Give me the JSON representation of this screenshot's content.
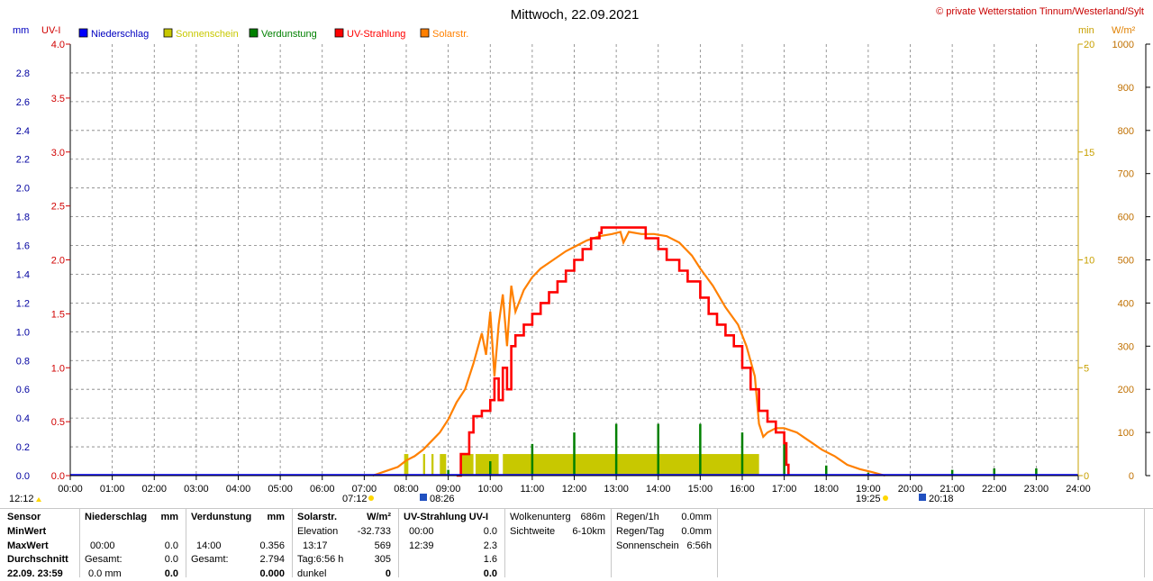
{
  "header": {
    "title": "Mittwoch, 22.09.2021",
    "copyright": "© private Wetterstation Tinnum/Westerland/Sylt"
  },
  "axes": {
    "left_unit_mm": "mm",
    "left_unit_uv": "UV-I",
    "right_unit_min": "min",
    "right_unit_wm2": "W/m²"
  },
  "legend": [
    {
      "label": "Niederschlag",
      "color": "#0000ff"
    },
    {
      "label": "Sonnenschein",
      "color": "#c8c800"
    },
    {
      "label": "Verdunstung",
      "color": "#008000"
    },
    {
      "label": "UV-Strahlung",
      "color": "#ff0000"
    },
    {
      "label": "Solarstr.",
      "color": "#ff8000"
    }
  ],
  "sun_markers": {
    "sunrise": "07:12",
    "sunset": "19:25",
    "moon_left": "08:26",
    "moon_right": "20:18",
    "left_time": "12:12"
  },
  "chart_data": {
    "type": "line",
    "x_ticks": [
      "00:00",
      "01:00",
      "02:00",
      "03:00",
      "04:00",
      "05:00",
      "06:00",
      "07:00",
      "08:00",
      "09:00",
      "10:00",
      "11:00",
      "12:00",
      "13:00",
      "14:00",
      "15:00",
      "16:00",
      "17:00",
      "18:00",
      "19:00",
      "20:00",
      "21:00",
      "22:00",
      "23:00",
      "24:00"
    ],
    "xlim_hours": [
      0,
      24
    ],
    "mm_axis": {
      "ticks": [
        "0.0",
        "0.2",
        "0.4",
        "0.6",
        "0.8",
        "1.0",
        "1.2",
        "1.4",
        "1.6",
        "1.8",
        "2.0",
        "2.2",
        "2.4",
        "2.6",
        "2.8"
      ],
      "ylim": [
        0,
        3.0
      ]
    },
    "uv_axis": {
      "ticks": [
        "0.0",
        "0.5",
        "1.0",
        "1.5",
        "2.0",
        "2.5",
        "3.0",
        "3.5",
        "4.0"
      ],
      "ylim": [
        0,
        4.0
      ]
    },
    "min_axis": {
      "ticks": [
        "0",
        "5",
        "10",
        "15",
        "20"
      ],
      "ylim": [
        0,
        20
      ]
    },
    "wm2_axis": {
      "ticks": [
        "0",
        "100",
        "200",
        "300",
        "400",
        "500",
        "600",
        "700",
        "800",
        "900",
        "1000"
      ],
      "ylim": [
        0,
        1000
      ]
    },
    "series": [
      {
        "name": "Solarstr.",
        "unit": "W/m²",
        "color": "#ff8000",
        "x": [
          7.2,
          7.5,
          7.8,
          8.0,
          8.2,
          8.4,
          8.6,
          8.8,
          9.0,
          9.2,
          9.4,
          9.6,
          9.8,
          9.9,
          10.0,
          10.1,
          10.2,
          10.3,
          10.4,
          10.5,
          10.6,
          10.8,
          11.0,
          11.2,
          11.5,
          11.8,
          12.0,
          12.3,
          12.6,
          12.9,
          13.1,
          13.17,
          13.3,
          13.6,
          13.9,
          14.2,
          14.5,
          14.8,
          15.0,
          15.3,
          15.6,
          15.9,
          16.1,
          16.3,
          16.4,
          16.5,
          16.6,
          16.8,
          17.0,
          17.3,
          17.6,
          17.9,
          18.2,
          18.5,
          18.8,
          19.1,
          19.4
        ],
        "y": [
          0,
          10,
          20,
          35,
          45,
          60,
          80,
          100,
          130,
          170,
          200,
          260,
          330,
          280,
          380,
          230,
          350,
          420,
          300,
          440,
          380,
          430,
          460,
          480,
          500,
          520,
          530,
          545,
          555,
          560,
          565,
          540,
          565,
          560,
          560,
          555,
          540,
          510,
          480,
          440,
          390,
          350,
          300,
          230,
          120,
          90,
          100,
          110,
          110,
          100,
          80,
          60,
          45,
          25,
          15,
          8,
          0
        ]
      },
      {
        "name": "UV-Strahlung",
        "unit": "UV-I",
        "color": "#ff0000",
        "x": [
          9.2,
          9.3,
          9.5,
          9.6,
          9.8,
          10.0,
          10.1,
          10.2,
          10.3,
          10.4,
          10.5,
          10.6,
          10.8,
          11.0,
          11.2,
          11.4,
          11.6,
          11.8,
          12.0,
          12.2,
          12.4,
          12.6,
          12.65,
          13.0,
          13.5,
          13.7,
          14.0,
          14.2,
          14.5,
          14.7,
          15.0,
          15.2,
          15.4,
          15.6,
          15.8,
          16.0,
          16.2,
          16.4,
          16.6,
          16.8,
          17.0,
          17.05,
          17.1
        ],
        "y": [
          0,
          0.2,
          0.4,
          0.55,
          0.6,
          0.7,
          0.9,
          0.7,
          1.0,
          0.8,
          1.2,
          1.3,
          1.4,
          1.5,
          1.6,
          1.7,
          1.8,
          1.9,
          2.0,
          2.1,
          2.2,
          2.25,
          2.3,
          2.3,
          2.3,
          2.2,
          2.1,
          2.0,
          1.9,
          1.8,
          1.65,
          1.5,
          1.4,
          1.3,
          1.2,
          1.0,
          0.8,
          0.6,
          0.5,
          0.4,
          0.3,
          0.1,
          0
        ]
      },
      {
        "name": "Sonnenschein",
        "unit": "min",
        "color": "#c8c800",
        "segments": [
          [
            7.95,
            8.05
          ],
          [
            8.4,
            8.45
          ],
          [
            8.6,
            8.65
          ],
          [
            8.8,
            8.95
          ],
          [
            9.3,
            9.6
          ],
          [
            9.65,
            10.2
          ],
          [
            10.3,
            16.4
          ]
        ],
        "value": 1
      },
      {
        "name": "Verdunstung",
        "unit": "mm",
        "color": "#008000",
        "spikes": [
          [
            1,
            0.01
          ],
          [
            2,
            0.01
          ],
          [
            3,
            0.01
          ],
          [
            4,
            0.01
          ],
          [
            5,
            0.01
          ],
          [
            6,
            0.01
          ],
          [
            9,
            0.04
          ],
          [
            10,
            0.1
          ],
          [
            11,
            0.22
          ],
          [
            12,
            0.3
          ],
          [
            13,
            0.36
          ],
          [
            14,
            0.36
          ],
          [
            15,
            0.36
          ],
          [
            16,
            0.3
          ],
          [
            17,
            0.22
          ],
          [
            18,
            0.07
          ],
          [
            19,
            0.02
          ],
          [
            21,
            0.04
          ],
          [
            22,
            0.05
          ],
          [
            23,
            0.05
          ]
        ]
      }
    ]
  },
  "stats": {
    "sensor": {
      "title": "Sensor",
      "minwert": "MinWert",
      "maxwert": "MaxWert",
      "durchschnitt": "Durchschnitt",
      "last": "22.09. 23:59"
    },
    "niederschlag": {
      "title": "Niederschlag",
      "unit": "mm",
      "max_time": "00:00",
      "max_val": "0.0",
      "gesamt_label": "Gesamt:",
      "gesamt_val": "0.0",
      "last_left": "0.0 mm",
      "last_right": "0.0"
    },
    "verdunstung": {
      "title": "Verdunstung",
      "unit": "mm",
      "max_time": "14:00",
      "max_val": "0.356",
      "gesamt_label": "Gesamt:",
      "gesamt_val": "2.794",
      "last_right": "0.000"
    },
    "solar": {
      "title": "Solarstr.",
      "unit": "W/m²",
      "elev_label": "Elevation",
      "elev_val": "-32.733",
      "max_time": "13:17",
      "max_val": "569",
      "tag_label": "Tag:6:56 h",
      "tag_val": "305",
      "dunkel_label": "dunkel",
      "dunkel_val": "0"
    },
    "uv": {
      "title": "UV-Strahlung UV-I",
      "min_time": "00:00",
      "min_val": "0.0",
      "max_time": "12:39",
      "max_val": "2.3",
      "avg_val": "1.6",
      "last_val": "0.0"
    },
    "cloud": {
      "wolken_label": "Wolkenunterg",
      "wolken_val": "686m",
      "sicht_label": "Sichtweite",
      "sicht_val": "6-10km"
    },
    "rain": {
      "regen1h_label": "Regen/1h",
      "regen1h_val": "0.0mm",
      "regentag_label": "Regen/Tag",
      "regentag_val": "0.0mm",
      "sonne_label": "Sonnenschein",
      "sonne_val": "6:56h"
    }
  }
}
